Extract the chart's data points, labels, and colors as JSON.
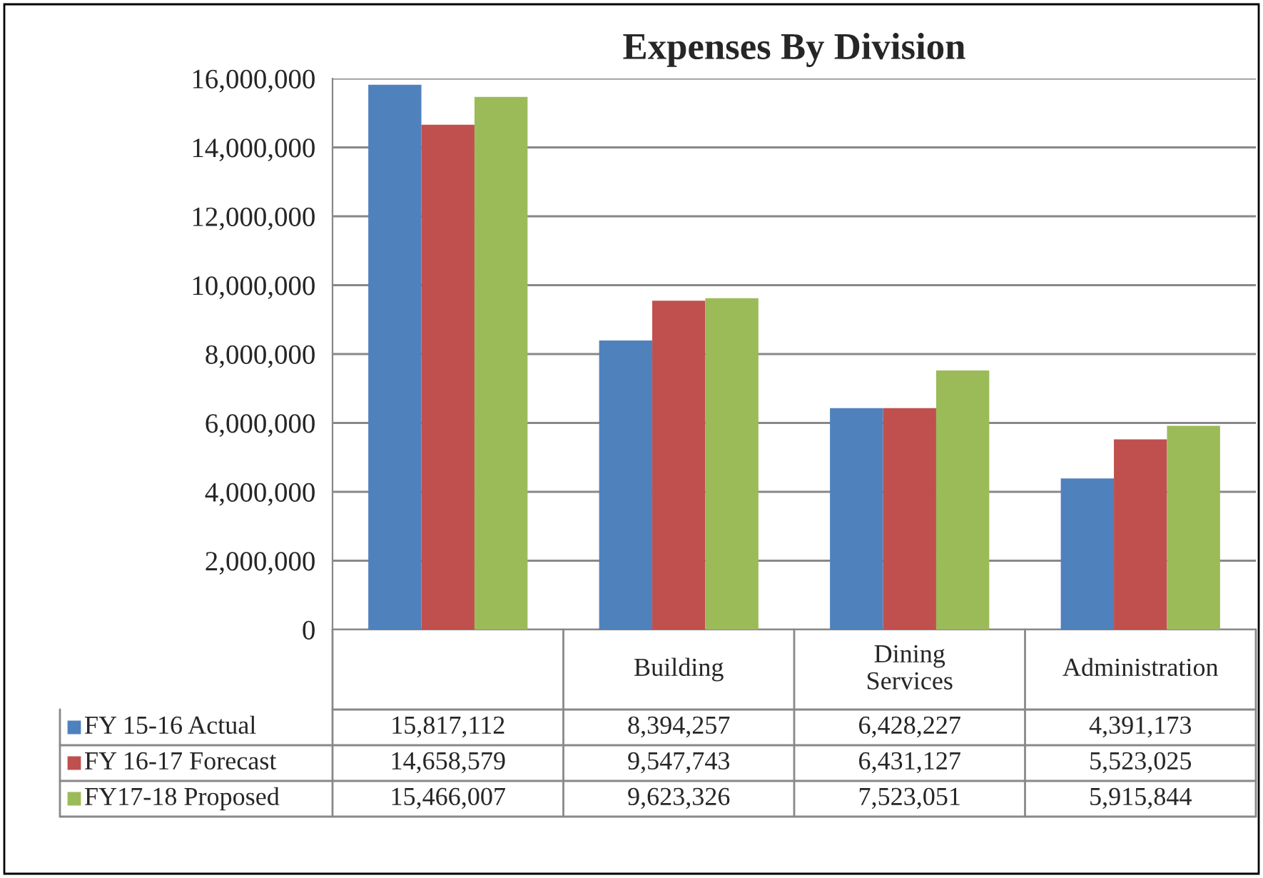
{
  "chart_data": {
    "type": "bar",
    "title": "Expenses By Division",
    "categories": [
      null,
      "Building",
      "Dining\nServices",
      "Administration"
    ],
    "series": [
      {
        "name": "FY 15-16 Actual",
        "color": "#4f81bd",
        "values": [
          15817112,
          8394257,
          6428227,
          4391173
        ],
        "value_labels": [
          "15,817,112",
          "8,394,257",
          "6,428,227",
          "4,391,173"
        ]
      },
      {
        "name": "FY 16-17 Forecast",
        "color": "#c0504d",
        "values": [
          14658579,
          9547743,
          6431127,
          5523025
        ],
        "value_labels": [
          "14,658,579",
          "9,547,743",
          "6,431,127",
          "5,523,025"
        ]
      },
      {
        "name": "FY17-18 Proposed",
        "color": "#9bbb59",
        "values": [
          15466007,
          9623326,
          7523051,
          5915844
        ],
        "value_labels": [
          "15,466,007",
          "9,623,326",
          "7,523,051",
          "5,915,844"
        ]
      }
    ],
    "ylim": [
      0,
      16000000
    ],
    "yticks": [
      {
        "value": 0,
        "label": "0"
      },
      {
        "value": 2000000,
        "label": "2,000,000"
      },
      {
        "value": 4000000,
        "label": "4,000,000"
      },
      {
        "value": 6000000,
        "label": "6,000,000"
      },
      {
        "value": 8000000,
        "label": "8,000,000"
      },
      {
        "value": 10000000,
        "label": "10,000,000"
      },
      {
        "value": 12000000,
        "label": "12,000,000"
      },
      {
        "value": 14000000,
        "label": "14,000,000"
      },
      {
        "value": 16000000,
        "label": "16,000,000"
      }
    ],
    "grid": "y",
    "legend": "bottom"
  }
}
